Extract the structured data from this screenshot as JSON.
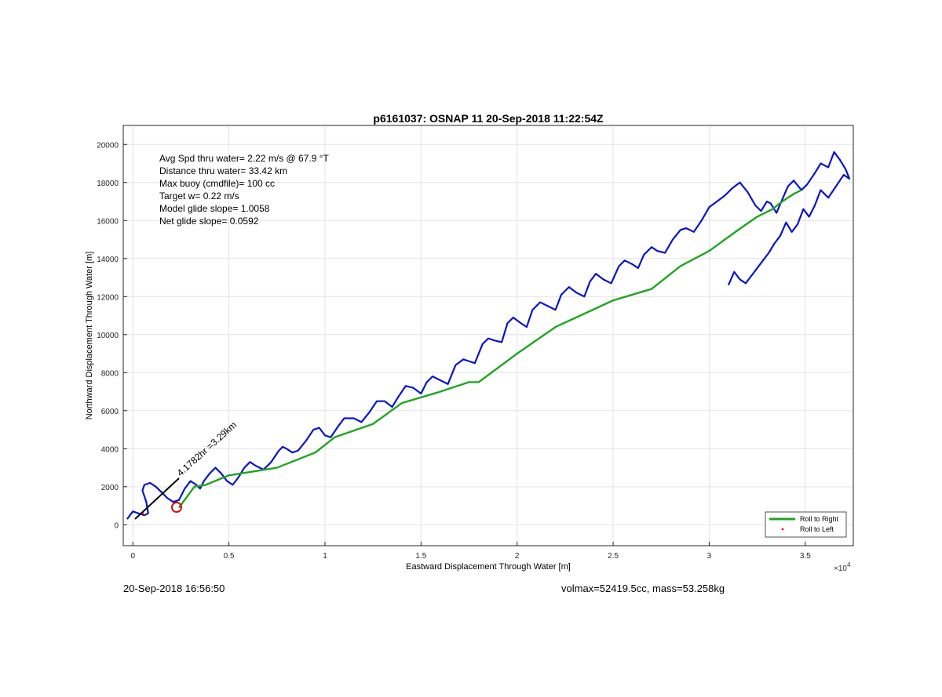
{
  "chart_data": {
    "type": "line",
    "title": "p6161037: OSNAP 11 20-Sep-2018 11:22:54Z",
    "xlabel": "Eastward Displacement Through Water [m]",
    "ylabel": "Northward Displacement Through Water [m]",
    "xlim": [
      -500,
      37500
    ],
    "ylim": [
      -1100,
      21000
    ],
    "x_ticks": [
      0,
      5000,
      10000,
      15000,
      20000,
      25000,
      30000,
      35000
    ],
    "x_tick_labels": [
      "0",
      "0.5",
      "1",
      "1.5",
      "2",
      "2.5",
      "3",
      "3.5"
    ],
    "x_exponent_label": "×10",
    "x_exponent_power": "4",
    "y_ticks": [
      0,
      2000,
      4000,
      6000,
      8000,
      10000,
      12000,
      14000,
      16000,
      18000,
      20000
    ],
    "y_tick_labels": [
      "0",
      "2000",
      "4000",
      "6000",
      "8000",
      "10000",
      "12000",
      "14000",
      "16000",
      "18000",
      "20000"
    ],
    "grid": true,
    "legend_position": "bottom-right",
    "legend": [
      "Roll to Right",
      "Roll to Left"
    ],
    "annotations": [
      "Avg Spd thru water=  2.22 m/s @  67.9 °T",
      "Distance thru water= 33.42 km",
      "Max buoy (cmdfile)= 100 cc",
      "Target w= 0.22 m/s",
      "Model glide slope= 1.0058",
      "Net glide slope= 0.0592"
    ],
    "current_label": "4.1782hr =3.29km",
    "series": [
      {
        "name": "Roll to Right",
        "color": "#1fa51f",
        "x": [
          2400,
          3200,
          3800,
          5000,
          7500,
          9500,
          10500,
          12500,
          14000,
          16000,
          17500,
          18000,
          20000,
          22000,
          25000,
          27000,
          28500,
          30000,
          31500,
          32500,
          33300,
          33800,
          34100,
          34400,
          34800
        ],
        "y": [
          900,
          2000,
          2100,
          2600,
          3000,
          3800,
          4600,
          5300,
          6400,
          7000,
          7500,
          7500,
          9000,
          10400,
          11800,
          12400,
          13600,
          14400,
          15500,
          16200,
          16600,
          17000,
          17200,
          17400,
          17600
        ]
      },
      {
        "name": "Roll to Left",
        "color": "#ff0000",
        "x": [
          500
        ],
        "y": [
          600
        ]
      }
    ],
    "track": {
      "color": "#0a14c8",
      "x": [
        -300,
        0,
        300,
        600,
        800,
        700,
        500,
        600,
        900,
        1200,
        1500,
        1800,
        2100,
        2400,
        2700,
        3000,
        3300,
        3500,
        3700,
        4000,
        4300,
        4600,
        4900,
        5200,
        5500,
        5800,
        6100,
        6400,
        6800,
        7200,
        7600,
        7800,
        8000,
        8300,
        8600,
        9000,
        9400,
        9700,
        10000,
        10300,
        10700,
        11000,
        11500,
        11900,
        12300,
        12700,
        13100,
        13500,
        13800,
        14200,
        14600,
        15000,
        15300,
        15600,
        16000,
        16400,
        16800,
        17200,
        17500,
        17800,
        18200,
        18500,
        18800,
        19200,
        19500,
        19800,
        20200,
        20500,
        20800,
        21200,
        21600,
        22000,
        22300,
        22700,
        23100,
        23500,
        23800,
        24100,
        24500,
        24900,
        25300,
        25600,
        26000,
        26300,
        26600,
        27000,
        27300,
        27700,
        28100,
        28500,
        28800,
        29200,
        29600,
        30000,
        30400,
        30800,
        31200,
        31600,
        32000,
        32400,
        32700,
        33000,
        33200,
        33500,
        33800,
        34100,
        34400,
        34800,
        35100,
        35500,
        35800,
        36200,
        36500,
        36800,
        37100,
        37300,
        37000,
        36600,
        36200,
        35800,
        35500,
        35200,
        34900,
        34600,
        34300,
        34000,
        33700,
        33400,
        33100,
        32800,
        32500,
        32200,
        31900,
        31600,
        31300,
        31000
      ],
      "y": [
        300,
        700,
        600,
        500,
        600,
        1200,
        1800,
        2100,
        2200,
        2000,
        1700,
        1400,
        1200,
        1300,
        1900,
        2300,
        2100,
        1900,
        2300,
        2700,
        3000,
        2700,
        2300,
        2100,
        2500,
        3000,
        3300,
        3100,
        2900,
        3300,
        3900,
        4100,
        4000,
        3800,
        3900,
        4400,
        5000,
        5100,
        4700,
        4600,
        5200,
        5600,
        5600,
        5400,
        5900,
        6500,
        6500,
        6200,
        6700,
        7300,
        7200,
        6900,
        7500,
        7800,
        7600,
        7400,
        8400,
        8700,
        8600,
        8500,
        9500,
        9800,
        9700,
        9600,
        10600,
        10900,
        10600,
        10400,
        11300,
        11700,
        11500,
        11300,
        12100,
        12500,
        12200,
        12000,
        12800,
        13200,
        12900,
        12700,
        13600,
        13900,
        13700,
        13500,
        14200,
        14600,
        14400,
        14300,
        15000,
        15500,
        15600,
        15400,
        16000,
        16700,
        17000,
        17300,
        17700,
        18000,
        17500,
        16800,
        16500,
        17000,
        16900,
        16400,
        17100,
        17800,
        18100,
        17600,
        17900,
        18500,
        19000,
        18800,
        19600,
        19200,
        18700,
        18200,
        18400,
        17800,
        17200,
        17600,
        16800,
        16200,
        16600,
        15800,
        15400,
        15900,
        15200,
        14800,
        14300,
        13900,
        13500,
        13100,
        12700,
        12900,
        13300,
        12600
      ]
    }
  },
  "footer": {
    "left": "20-Sep-2018 16:56:50",
    "right": "volmax=52419.5cc, mass=53.258kg"
  }
}
